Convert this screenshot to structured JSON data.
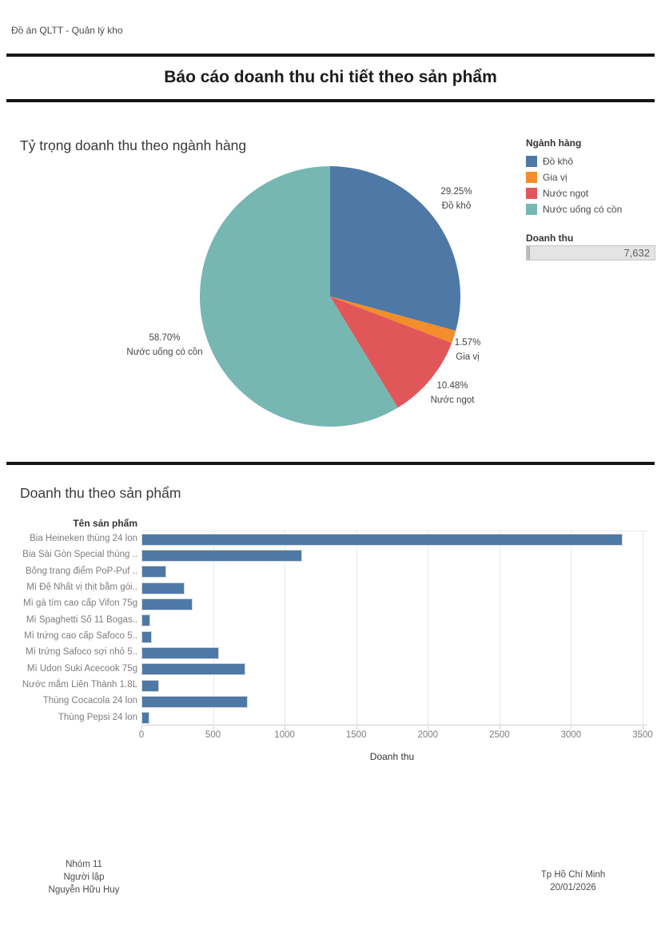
{
  "window": {
    "tab_label": "Đồ án QLTT - Quản lý kho"
  },
  "header": {
    "title": "Báo cáo doanh thu chi tiết theo sản phẩm"
  },
  "pie_section": {
    "title": "Tỷ trọng doanh thu theo ngành hàng",
    "legend": {
      "title": "Ngành hàng",
      "items": [
        {
          "label": "Đồ khô",
          "color": "#4e79a7"
        },
        {
          "label": "Gia vị",
          "color": "#f28e2b"
        },
        {
          "label": "Nước ngọt",
          "color": "#e15759"
        },
        {
          "label": "Nước uống có cồn",
          "color": "#76b7b2"
        }
      ]
    },
    "filter": {
      "title": "Doanh thu",
      "value": "7,632"
    }
  },
  "bar_section": {
    "title": "Doanh thu theo sản phẩm",
    "row_header": "Tên sản phẩm",
    "axis_title": "Doanh thu"
  },
  "footer": {
    "left_lines": [
      "Nhóm 11",
      "Người lập",
      "Nguyễn Hữu Huy"
    ],
    "right_lines": [
      "Tp Hồ Chí Minh",
      "20/01/2026"
    ]
  },
  "chart_data": [
    {
      "type": "pie",
      "title": "Tỷ trọng doanh thu theo ngành hàng",
      "start_angle_deg": 0,
      "direction": "clockwise",
      "legend_position": "right",
      "slices": [
        {
          "label": "Đồ khô",
          "percent": 29.25,
          "percent_label": "29.25%",
          "color": "#4e79a7"
        },
        {
          "label": "Gia vị",
          "percent": 1.57,
          "percent_label": "1.57%",
          "color": "#f28e2b"
        },
        {
          "label": "Nước ngọt",
          "percent": 10.48,
          "percent_label": "10.48%",
          "color": "#e15759"
        },
        {
          "label": "Nước uống có cồn",
          "percent": 58.7,
          "percent_label": "58.70%",
          "color": "#76b7b2"
        }
      ]
    },
    {
      "type": "bar",
      "orientation": "horizontal",
      "title": "Doanh thu theo sản phẩm",
      "categories": [
        "Bia Heineken thùng 24 lon",
        "Bia Sài Gòn Special thùng ..",
        "Bông trang điểm PoP-Puf ..",
        "Mì Đệ Nhất vị thịt bằm gói..",
        "Mì gà tím cao cấp Vifon 75g",
        "Mì Spaghetti Số 11 Bogas..",
        "Mì trứng cao cấp Safoco 5..",
        "Mì trứng Safoco sợi nhỏ 5..",
        "Mì Udon Suki Acecook 75g",
        "Nước mắm Liên Thành 1.8L",
        "Thùng Cocacola 24 lon",
        "Thùng Pepsi 24 lon"
      ],
      "values": [
        3360,
        1120,
        175,
        300,
        355,
        62,
        72,
        540,
        728,
        120,
        743,
        57
      ],
      "xlabel": "Doanh thu",
      "xlim": [
        0,
        3500
      ],
      "xticks": [
        0,
        500,
        1000,
        1500,
        2000,
        2500,
        3000,
        3500
      ],
      "bar_color": "#4e79a7",
      "grid": true
    }
  ]
}
